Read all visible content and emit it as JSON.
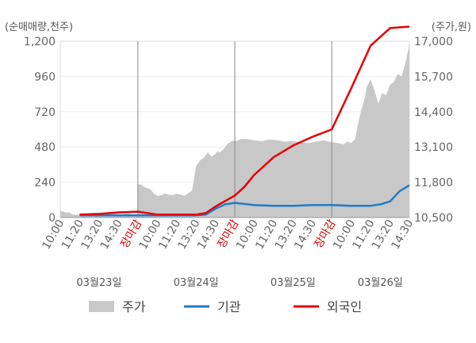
{
  "chart_data": {
    "type": "line",
    "left_axis_title": "(순매매량,천주)",
    "right_axis_title": "(주가,원)",
    "left_ylim": [
      0,
      1200
    ],
    "right_ylim": [
      10500,
      17000
    ],
    "left_ticks": [
      "1,200",
      "960",
      "720",
      "480",
      "240",
      "0"
    ],
    "right_ticks": [
      "17,000",
      "15,700",
      "14,400",
      "13,100",
      "11,800",
      "10,500"
    ],
    "x_ticks": [
      {
        "label": "10:00",
        "closing": false
      },
      {
        "label": "11:20",
        "closing": false
      },
      {
        "label": "13:20",
        "closing": false
      },
      {
        "label": "14:30",
        "closing": false
      },
      {
        "label": "장마감",
        "closing": true
      },
      {
        "label": "10:00",
        "closing": false
      },
      {
        "label": "11:20",
        "closing": false
      },
      {
        "label": "13:20",
        "closing": false
      },
      {
        "label": "14:30",
        "closing": false
      },
      {
        "label": "장마감",
        "closing": true
      },
      {
        "label": "10:00",
        "closing": false
      },
      {
        "label": "11:20",
        "closing": false
      },
      {
        "label": "13:20",
        "closing": false
      },
      {
        "label": "14:30",
        "closing": false
      },
      {
        "label": "장마감",
        "closing": true
      },
      {
        "label": "10:00",
        "closing": false
      },
      {
        "label": "11:20",
        "closing": false
      },
      {
        "label": "13:20",
        "closing": false
      },
      {
        "label": "14:30",
        "closing": false
      }
    ],
    "dates": [
      "03월23일",
      "03월24일",
      "03월25일",
      "03월26일"
    ],
    "grid": true,
    "legend_position": "bottom",
    "series": [
      {
        "name": "주가",
        "kind": "area",
        "axis": "right",
        "color": "#c8c8c8",
        "x": [
          0.0,
          0.15,
          0.3,
          0.45,
          0.6,
          0.75,
          0.9,
          1.0,
          1.2,
          1.4,
          1.6,
          1.8,
          2.0,
          2.3,
          2.6,
          3.0,
          3.2,
          3.4,
          3.6,
          3.8,
          3.99,
          4.0,
          4.1,
          4.2,
          4.3,
          4.4,
          4.5,
          4.6,
          4.7,
          4.8,
          5.0,
          5.2,
          5.4,
          5.6,
          5.8,
          6.0,
          6.2,
          6.4,
          6.6,
          6.8,
          7.0,
          7.2,
          7.4,
          7.6,
          7.8,
          8.0,
          8.1,
          8.2,
          8.4,
          8.6,
          8.8,
          8.99,
          9.0,
          9.3,
          9.6,
          10.0,
          10.4,
          10.8,
          11.2,
          11.6,
          12.0,
          12.4,
          12.8,
          13.2,
          13.6,
          13.99,
          14.0,
          14.3,
          14.6,
          14.8,
          15.0,
          15.2,
          15.4,
          15.5,
          15.7,
          15.8,
          16.0,
          16.2,
          16.4,
          16.6,
          16.8,
          17.0,
          17.2,
          17.4,
          17.6,
          17.8,
          18.0
        ],
        "values": [
          10750,
          10720,
          10680,
          10700,
          10620,
          10600,
          10610,
          10600,
          10580,
          10620,
          10600,
          10630,
          10640,
          10620,
          10650,
          10640,
          10630,
          10650,
          10640,
          10620,
          10620,
          11700,
          11730,
          11700,
          11650,
          11600,
          11580,
          11560,
          11500,
          11400,
          11300,
          11320,
          11380,
          11350,
          11330,
          11380,
          11350,
          11300,
          11400,
          11500,
          12400,
          12600,
          12700,
          12900,
          12750,
          12850,
          12950,
          12900,
          13000,
          13200,
          13300,
          13350,
          13300,
          13400,
          13400,
          13350,
          13320,
          13380,
          13350,
          13300,
          13320,
          13280,
          13250,
          13300,
          13350,
          13280,
          13280,
          13250,
          13200,
          13300,
          13250,
          13400,
          14100,
          14400,
          14900,
          15300,
          15600,
          15200,
          14700,
          15100,
          15000,
          15400,
          15500,
          15800,
          15700,
          16200,
          16900
        ]
      },
      {
        "name": "기관",
        "kind": "line",
        "axis": "left",
        "color": "#1f7bc9",
        "x": [
          1.0,
          2.0,
          3.0,
          4.0,
          5.0,
          6.0,
          7.0,
          7.5,
          8.0,
          8.5,
          9.0,
          9.3,
          10.0,
          11.0,
          12.0,
          13.0,
          14.0,
          15.0,
          16.0,
          16.5,
          17.0,
          17.5,
          18.0
        ],
        "values": [
          15,
          15,
          15,
          15,
          15,
          15,
          15,
          20,
          60,
          90,
          100,
          95,
          85,
          80,
          80,
          85,
          85,
          80,
          80,
          90,
          110,
          180,
          220
        ]
      },
      {
        "name": "외국인",
        "kind": "line",
        "axis": "left",
        "color": "#e60000",
        "x": [
          1.0,
          2.0,
          3.0,
          4.0,
          4.5,
          5.0,
          6.0,
          7.0,
          7.5,
          8.0,
          9.0,
          9.5,
          10.0,
          11.0,
          12.0,
          13.0,
          14.0,
          15.0,
          16.0,
          17.0,
          18.0
        ],
        "values": [
          20,
          25,
          35,
          40,
          30,
          20,
          20,
          20,
          30,
          75,
          150,
          210,
          290,
          410,
          490,
          550,
          600,
          880,
          1170,
          1290,
          1300
        ]
      }
    ]
  }
}
